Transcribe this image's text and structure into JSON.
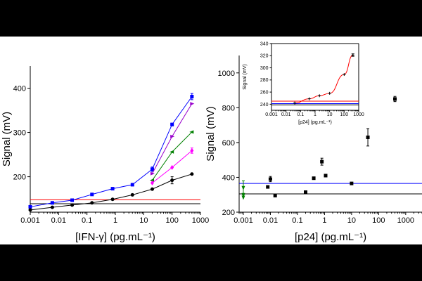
{
  "chart_data": [
    {
      "type": "line",
      "xlabel": "[IFN-γ] (pg.mL⁻¹)",
      "ylabel": "Signal (mV)",
      "xscale": "log",
      "xlim": [
        0.001,
        1000
      ],
      "ylim": [
        120,
        450
      ],
      "xticks": [
        "0.001",
        "0.01",
        "0.1",
        "1",
        "10",
        "100",
        "1000"
      ],
      "yticks": [
        "200",
        "300",
        "400"
      ],
      "hlines": [
        {
          "y": 148,
          "color": "#ff0000"
        },
        {
          "y": 139,
          "color": "#000000"
        }
      ],
      "series": [
        {
          "color": "#0000ff",
          "marker": "square",
          "x": [
            0.001,
            0.006,
            0.03,
            0.15,
            0.8,
            4,
            20,
            100,
            500
          ],
          "y": [
            132,
            141,
            147,
            160,
            173,
            182,
            217,
            318,
            381
          ],
          "err": [
            0,
            0,
            0,
            0,
            0,
            0,
            5,
            3,
            7
          ]
        },
        {
          "color": "#9900cc",
          "marker": "triangle-right",
          "x": [
            20,
            100,
            500
          ],
          "y": [
            207,
            291,
            365
          ],
          "err": [
            0,
            0,
            0
          ]
        },
        {
          "color": "#008000",
          "marker": "triangle-left",
          "x": [
            20,
            100,
            500
          ],
          "y": [
            192,
            256,
            301
          ],
          "err": [
            0,
            0,
            0
          ]
        },
        {
          "color": "#ff00ff",
          "marker": "diamond",
          "x": [
            20,
            100,
            500
          ],
          "y": [
            186,
            221,
            259
          ],
          "err": [
            0,
            0,
            6
          ]
        },
        {
          "color": "#000000",
          "marker": "circle",
          "x": [
            0.001,
            0.006,
            0.03,
            0.15,
            0.8,
            4,
            20,
            100,
            500
          ],
          "y": [
            125,
            131,
            136,
            141,
            149,
            159,
            172,
            192,
            206
          ],
          "err": [
            0,
            0,
            0,
            0,
            0,
            0,
            0,
            8,
            0
          ]
        }
      ]
    },
    {
      "type": "scatter",
      "xlabel": "[p24] (pg.mL⁻¹)",
      "ylabel": "Signal (mV)",
      "xscale": "log",
      "xlim": [
        0.0007,
        4000
      ],
      "ylim": [
        200,
        1100
      ],
      "xticks": [
        "0.001",
        "0.01",
        "0.1",
        "1",
        "10",
        "100",
        "1000"
      ],
      "yticks": [
        "200",
        "400",
        "600",
        "800",
        "1000"
      ],
      "hlines": [
        {
          "y": 365,
          "color": "#0000ff"
        },
        {
          "y": 305,
          "color": "#000000"
        }
      ],
      "series": [
        {
          "color": "#000000",
          "marker": "square",
          "x": [
            0.008,
            0.01,
            0.015,
            0.2,
            0.4,
            0.8,
            1.1,
            10,
            40,
            400
          ],
          "y": [
            345,
            390,
            295,
            315,
            395,
            490,
            410,
            365,
            630,
            850
          ],
          "err": [
            0,
            15,
            0,
            0,
            0,
            20,
            0,
            0,
            50,
            15
          ]
        },
        {
          "color": "#008000",
          "marker": "triangle-down",
          "x": [
            0.001,
            0.001,
            0.001
          ],
          "y": [
            340,
            300,
            285
          ],
          "err": [
            40,
            0,
            0
          ]
        }
      ]
    },
    {
      "type": "scatter",
      "xlabel": "[p24] (pg.mL⁻¹)",
      "ylabel": "Signal (mV)",
      "xscale": "log",
      "xlim": [
        0.001,
        1000
      ],
      "ylim": [
        230,
        340
      ],
      "xticks": [
        "0.001",
        "0.01",
        "0.1",
        "1",
        "10",
        "100",
        "1000"
      ],
      "yticks": [
        "240",
        "260",
        "280",
        "300",
        "320",
        "340"
      ],
      "hlines": [
        {
          "y": 245,
          "color": "#ff0000"
        },
        {
          "y": 241,
          "color": "#0000ff"
        },
        {
          "y": 239,
          "color": "#000000"
        }
      ],
      "fit_color": "#ff0000",
      "series": [
        {
          "color": "#000000",
          "marker": "plus",
          "x": [
            0.04,
            0.4,
            2,
            10,
            100,
            400
          ],
          "y": [
            242,
            249,
            254,
            258,
            289,
            321
          ],
          "err": [
            0,
            0,
            0,
            0,
            0,
            2
          ]
        }
      ]
    }
  ]
}
